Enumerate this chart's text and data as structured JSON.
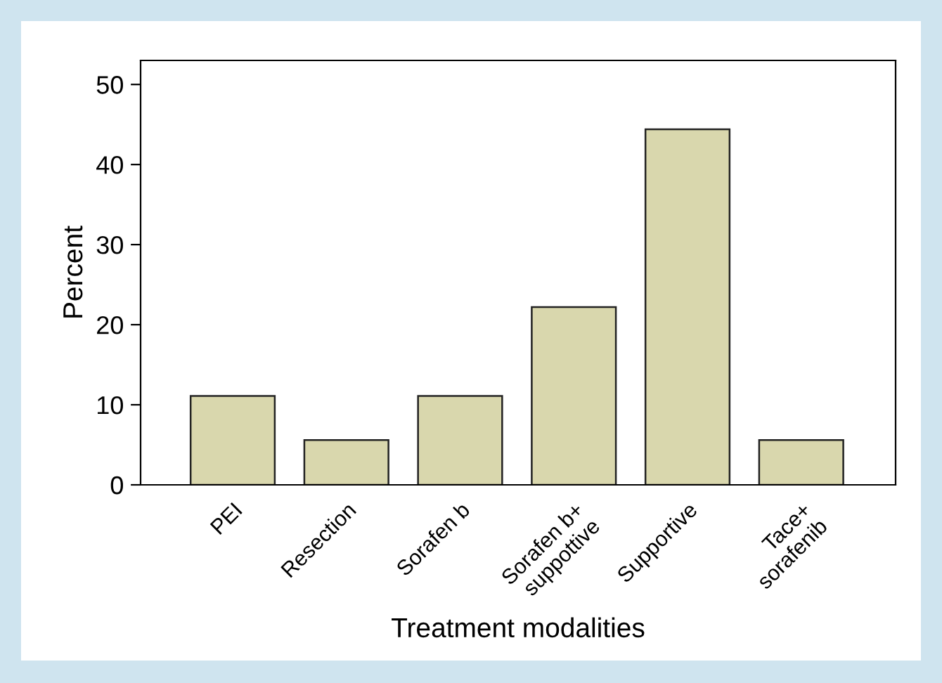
{
  "chart_data": {
    "type": "bar",
    "xlabel": "Treatment modalities",
    "ylabel": "Percent",
    "categories": [
      "PEI",
      "Resection",
      "Sorafen b",
      "Sorafen b+\nsuppottive",
      "Supportive",
      "Tace+\nsorafenib"
    ],
    "values": [
      11.1,
      5.6,
      11.1,
      22.2,
      44.4,
      5.6
    ],
    "color": "#d9d7ad",
    "ylim": [
      0,
      53
    ],
    "yticks": [
      0,
      10,
      20,
      30,
      40,
      50
    ],
    "grid": false
  }
}
